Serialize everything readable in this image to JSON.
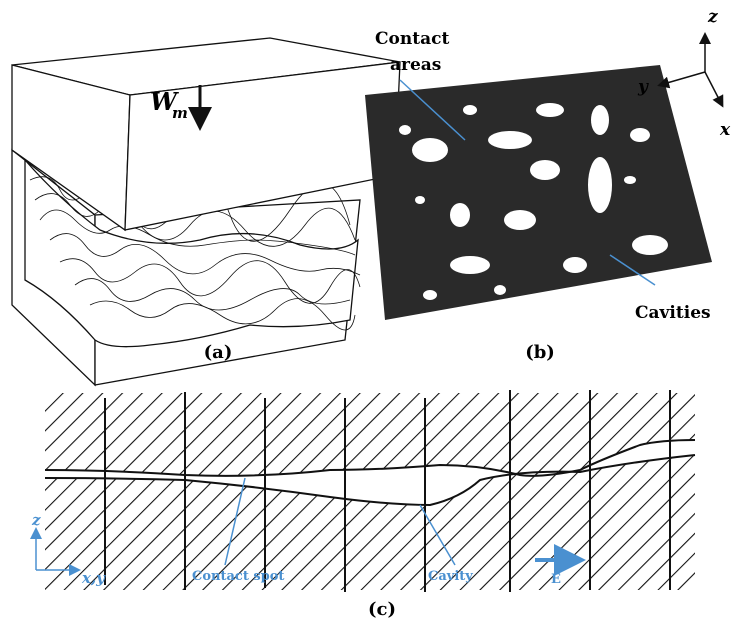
{
  "panel_a": {
    "label": "(a)",
    "load_symbol": "W",
    "load_subscript": "m"
  },
  "panel_b": {
    "label": "(b)",
    "contact_label": [
      "Contact",
      "areas"
    ],
    "cavity_label": "Cavities",
    "axes": {
      "z": "z",
      "y": "y",
      "x": "x"
    }
  },
  "panel_c": {
    "label": "(c)",
    "axes": {
      "vertical": "z",
      "horizontal": "x,y"
    },
    "contact_label": "Contact spot",
    "cavity_label": "Cavity",
    "field_label": "E"
  }
}
